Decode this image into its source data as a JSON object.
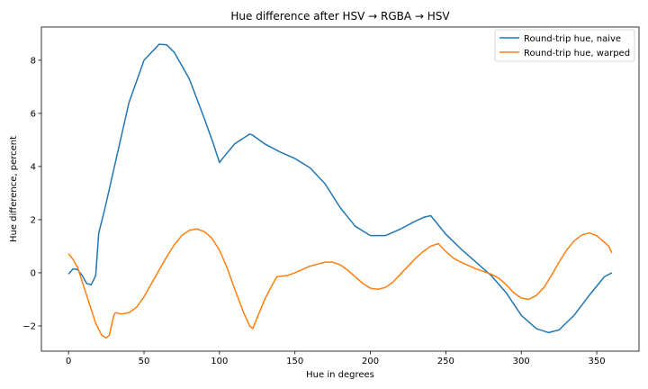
{
  "chart_data": {
    "type": "line",
    "title": "Hue difference after HSV → RGBA → HSV",
    "xlabel": "Hue in degrees",
    "ylabel": "Hue difference, percent",
    "xlim": [
      -18,
      378
    ],
    "ylim": [
      -2.95,
      9.25
    ],
    "xticks": [
      0,
      50,
      100,
      150,
      200,
      250,
      300,
      350
    ],
    "yticks": [
      -2,
      0,
      2,
      4,
      6,
      8
    ],
    "grid": false,
    "legend_position": "top-right",
    "series": [
      {
        "name": "Round-trip hue, naive",
        "color": "#1f77b4",
        "points": [
          [
            0,
            -0.05
          ],
          [
            3,
            0.15
          ],
          [
            6,
            0.12
          ],
          [
            9,
            -0.1
          ],
          [
            12,
            -0.4
          ],
          [
            15,
            -0.45
          ],
          [
            18,
            -0.1
          ],
          [
            20,
            1.5
          ],
          [
            24,
            2.4
          ],
          [
            30,
            3.9
          ],
          [
            40,
            6.4
          ],
          [
            50,
            8.0
          ],
          [
            60,
            8.6
          ],
          [
            65,
            8.58
          ],
          [
            70,
            8.3
          ],
          [
            80,
            7.3
          ],
          [
            90,
            5.8
          ],
          [
            96,
            4.85
          ],
          [
            100,
            4.15
          ],
          [
            102,
            4.3
          ],
          [
            110,
            4.85
          ],
          [
            120,
            5.22
          ],
          [
            122,
            5.18
          ],
          [
            130,
            4.85
          ],
          [
            140,
            4.55
          ],
          [
            150,
            4.3
          ],
          [
            160,
            3.95
          ],
          [
            170,
            3.35
          ],
          [
            180,
            2.45
          ],
          [
            190,
            1.75
          ],
          [
            200,
            1.4
          ],
          [
            210,
            1.4
          ],
          [
            220,
            1.65
          ],
          [
            230,
            1.95
          ],
          [
            236,
            2.1
          ],
          [
            240,
            2.15
          ],
          [
            250,
            1.45
          ],
          [
            260,
            0.9
          ],
          [
            270,
            0.4
          ],
          [
            280,
            -0.1
          ],
          [
            290,
            -0.75
          ],
          [
            300,
            -1.6
          ],
          [
            310,
            -2.1
          ],
          [
            318,
            -2.25
          ],
          [
            325,
            -2.15
          ],
          [
            335,
            -1.6
          ],
          [
            345,
            -0.85
          ],
          [
            355,
            -0.15
          ],
          [
            360,
            0.0
          ]
        ]
      },
      {
        "name": "Round-trip hue, warped",
        "color": "#ff7f0e",
        "points": [
          [
            0,
            0.72
          ],
          [
            3,
            0.5
          ],
          [
            6,
            0.2
          ],
          [
            10,
            -0.5
          ],
          [
            14,
            -1.2
          ],
          [
            18,
            -1.9
          ],
          [
            22,
            -2.35
          ],
          [
            25,
            -2.45
          ],
          [
            27,
            -2.35
          ],
          [
            30,
            -1.6
          ],
          [
            31,
            -1.5
          ],
          [
            35,
            -1.55
          ],
          [
            40,
            -1.5
          ],
          [
            45,
            -1.3
          ],
          [
            50,
            -0.9
          ],
          [
            55,
            -0.4
          ],
          [
            60,
            0.1
          ],
          [
            65,
            0.6
          ],
          [
            70,
            1.05
          ],
          [
            75,
            1.4
          ],
          [
            80,
            1.6
          ],
          [
            85,
            1.65
          ],
          [
            90,
            1.55
          ],
          [
            95,
            1.3
          ],
          [
            100,
            0.85
          ],
          [
            105,
            0.2
          ],
          [
            110,
            -0.6
          ],
          [
            116,
            -1.5
          ],
          [
            120,
            -2.0
          ],
          [
            122,
            -2.1
          ],
          [
            126,
            -1.55
          ],
          [
            130,
            -1.0
          ],
          [
            135,
            -0.45
          ],
          [
            138,
            -0.15
          ],
          [
            145,
            -0.1
          ],
          [
            150,
            0.0
          ],
          [
            160,
            0.25
          ],
          [
            170,
            0.4
          ],
          [
            175,
            0.4
          ],
          [
            180,
            0.3
          ],
          [
            185,
            0.1
          ],
          [
            190,
            -0.15
          ],
          [
            195,
            -0.4
          ],
          [
            200,
            -0.58
          ],
          [
            205,
            -0.62
          ],
          [
            210,
            -0.55
          ],
          [
            215,
            -0.35
          ],
          [
            220,
            -0.05
          ],
          [
            225,
            0.25
          ],
          [
            230,
            0.55
          ],
          [
            235,
            0.8
          ],
          [
            240,
            1.0
          ],
          [
            245,
            1.1
          ],
          [
            250,
            0.8
          ],
          [
            255,
            0.55
          ],
          [
            260,
            0.4
          ],
          [
            270,
            0.15
          ],
          [
            280,
            -0.05
          ],
          [
            285,
            -0.2
          ],
          [
            290,
            -0.45
          ],
          [
            295,
            -0.75
          ],
          [
            300,
            -0.95
          ],
          [
            305,
            -1.0
          ],
          [
            310,
            -0.85
          ],
          [
            315,
            -0.55
          ],
          [
            320,
            -0.1
          ],
          [
            325,
            0.4
          ],
          [
            330,
            0.85
          ],
          [
            335,
            1.2
          ],
          [
            340,
            1.42
          ],
          [
            345,
            1.5
          ],
          [
            350,
            1.4
          ],
          [
            353,
            1.25
          ],
          [
            356,
            1.1
          ],
          [
            358,
            1.0
          ],
          [
            360,
            0.75
          ]
        ]
      }
    ]
  }
}
